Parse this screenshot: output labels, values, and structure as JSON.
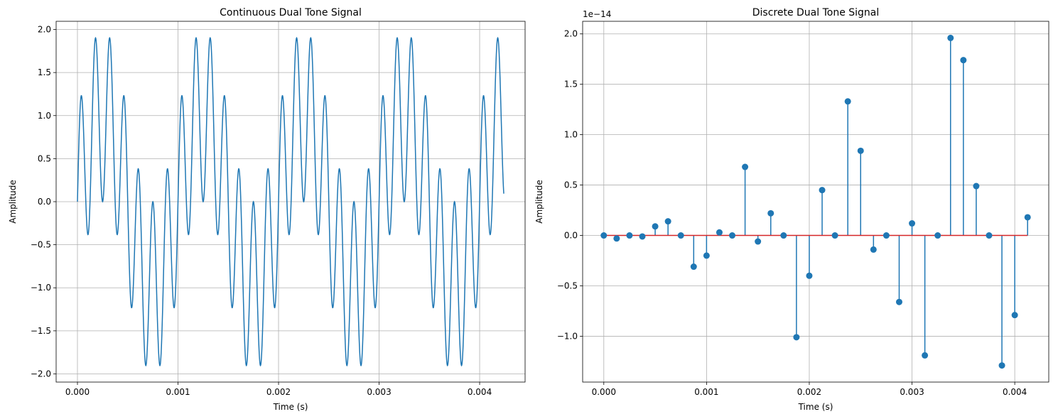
{
  "chart_data": [
    {
      "type": "line",
      "title": "Continuous Dual Tone Signal",
      "xlabel": "Time (s)",
      "ylabel": "Amplitude",
      "xlim": [
        -0.000212,
        0.004452
      ],
      "ylim": [
        -2.095,
        2.095
      ],
      "xticks": [
        0.0,
        0.001,
        0.002,
        0.003,
        0.004
      ],
      "xtick_labels": [
        "0.000",
        "0.001",
        "0.002",
        "0.003",
        "0.004"
      ],
      "yticks": [
        -2.0,
        -1.5,
        -1.0,
        -0.5,
        0.0,
        0.5,
        1.0,
        1.5,
        2.0
      ],
      "ytick_labels": [
        "−2.0",
        "−1.5",
        "−1.0",
        "−0.5",
        "0.0",
        "0.5",
        "1.0",
        "1.5",
        "2.0"
      ],
      "grid": true,
      "legend": "none",
      "series": [
        {
          "signal": "sin(2*pi*1000*t) + sin(2*pi*7000*t)",
          "x_start": 0.0,
          "x_end": 0.00424,
          "x_step": 2e-06,
          "color": "#1f77b4"
        }
      ]
    },
    {
      "type": "stem",
      "title": "Discrete Dual Tone Signal",
      "xlabel": "Time (s)",
      "ylabel": "Amplitude",
      "offset_label": "1e−14",
      "xlim": [
        -0.000206,
        0.004331
      ],
      "ylim": [
        -1.455,
        2.125
      ],
      "xticks": [
        0.0,
        0.001,
        0.002,
        0.003,
        0.004
      ],
      "xtick_labels": [
        "0.000",
        "0.001",
        "0.002",
        "0.003",
        "0.004"
      ],
      "yticks": [
        -1.0,
        -0.5,
        0.0,
        0.5,
        1.0,
        1.5,
        2.0
      ],
      "ytick_labels": [
        "−1.0",
        "−0.5",
        "0.0",
        "0.5",
        "1.0",
        "1.5",
        "2.0"
      ],
      "grid": true,
      "legend": "none",
      "baseline_color": "#d62728",
      "marker_color": "#1f77b4",
      "x": [
        0.0,
        0.000125,
        0.00025,
        0.000375,
        0.0005,
        0.000625,
        0.00075,
        0.000875,
        0.001,
        0.001125,
        0.00125,
        0.001375,
        0.0015,
        0.001625,
        0.00175,
        0.001875,
        0.002,
        0.002125,
        0.00225,
        0.002375,
        0.0025,
        0.002625,
        0.00275,
        0.002875,
        0.003,
        0.003125,
        0.00325,
        0.003375,
        0.0035,
        0.003625,
        0.00375,
        0.003875,
        0.004,
        0.004125
      ],
      "values": [
        0.0,
        -0.03,
        0.0,
        -0.01,
        0.09,
        0.14,
        0.0,
        -0.31,
        -0.2,
        0.03,
        0.0,
        0.68,
        -0.06,
        0.22,
        0.0,
        -1.01,
        -0.4,
        0.45,
        0.0,
        1.33,
        0.84,
        -0.14,
        0.0,
        -0.66,
        0.12,
        -1.19,
        0.0,
        1.96,
        1.74,
        0.49,
        0.0,
        -1.29,
        -0.79,
        0.18
      ]
    }
  ]
}
